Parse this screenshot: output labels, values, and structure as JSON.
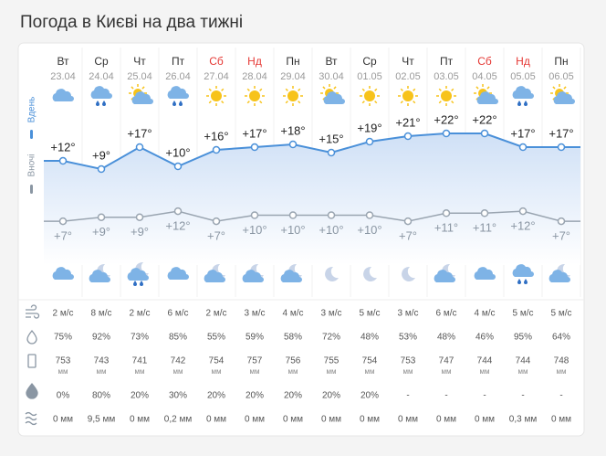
{
  "header": {
    "title": "Погода в Києві на два тижні"
  },
  "side_labels": {
    "day": "Вдень",
    "night": "Вночі"
  },
  "days": [
    {
      "weekday": "Вт",
      "date": "23.04",
      "weekend": false,
      "day_temp": 12,
      "day_label": "+12°",
      "night_temp": 7,
      "night_label": "+7°",
      "wind": "2 м/с",
      "humidity": "75%",
      "pressure": "753",
      "pressure_unit": "мм",
      "precip_prob": "0%",
      "precip": "0 мм"
    },
    {
      "weekday": "Ср",
      "date": "24.04",
      "weekend": false,
      "day_temp": 9,
      "day_label": "+9°",
      "night_temp": 9,
      "night_label": "+9°",
      "wind": "8 м/с",
      "humidity": "92%",
      "pressure": "743",
      "pressure_unit": "мм",
      "precip_prob": "80%",
      "precip": "9,5 мм"
    },
    {
      "weekday": "Чт",
      "date": "25.04",
      "weekend": false,
      "day_temp": 17,
      "day_label": "+17°",
      "night_temp": 9,
      "night_label": "+9°",
      "wind": "2 м/с",
      "humidity": "73%",
      "pressure": "741",
      "pressure_unit": "мм",
      "precip_prob": "20%",
      "precip": "0 мм"
    },
    {
      "weekday": "Пт",
      "date": "26.04",
      "weekend": false,
      "day_temp": 10,
      "day_label": "+10°",
      "night_temp": 12,
      "night_label": "+12°",
      "wind": "6 м/с",
      "humidity": "85%",
      "pressure": "742",
      "pressure_unit": "мм",
      "precip_prob": "30%",
      "precip": "0,2 мм"
    },
    {
      "weekday": "Сб",
      "date": "27.04",
      "weekend": true,
      "day_temp": 16,
      "day_label": "+16°",
      "night_temp": 7,
      "night_label": "+7°",
      "wind": "2 м/с",
      "humidity": "55%",
      "pressure": "754",
      "pressure_unit": "мм",
      "precip_prob": "20%",
      "precip": "0 мм"
    },
    {
      "weekday": "Нд",
      "date": "28.04",
      "weekend": true,
      "day_temp": 17,
      "day_label": "+17°",
      "night_temp": 10,
      "night_label": "+10°",
      "wind": "3 м/с",
      "humidity": "59%",
      "pressure": "757",
      "pressure_unit": "мм",
      "precip_prob": "20%",
      "precip": "0 мм"
    },
    {
      "weekday": "Пн",
      "date": "29.04",
      "weekend": false,
      "day_temp": 18,
      "day_label": "+18°",
      "night_temp": 10,
      "night_label": "+10°",
      "wind": "4 м/с",
      "humidity": "58%",
      "pressure": "756",
      "pressure_unit": "мм",
      "precip_prob": "20%",
      "precip": "0 мм"
    },
    {
      "weekday": "Вт",
      "date": "30.04",
      "weekend": false,
      "day_temp": 15,
      "day_label": "+15°",
      "night_temp": 10,
      "night_label": "+10°",
      "wind": "3 м/с",
      "humidity": "72%",
      "pressure": "755",
      "pressure_unit": "мм",
      "precip_prob": "20%",
      "precip": "0 мм"
    },
    {
      "weekday": "Ср",
      "date": "01.05",
      "weekend": false,
      "day_temp": 19,
      "day_label": "+19°",
      "night_temp": 10,
      "night_label": "+10°",
      "wind": "5 м/с",
      "humidity": "48%",
      "pressure": "754",
      "pressure_unit": "мм",
      "precip_prob": "20%",
      "precip": "0 мм"
    },
    {
      "weekday": "Чт",
      "date": "02.05",
      "weekend": false,
      "day_temp": 21,
      "day_label": "+21°",
      "night_temp": 7,
      "night_label": "+7°",
      "wind": "3 м/с",
      "humidity": "53%",
      "pressure": "753",
      "pressure_unit": "мм",
      "precip_prob": "-",
      "precip": "0 мм"
    },
    {
      "weekday": "Пт",
      "date": "03.05",
      "weekend": false,
      "day_temp": 22,
      "day_label": "+22°",
      "night_temp": 11,
      "night_label": "+11°",
      "wind": "6 м/с",
      "humidity": "48%",
      "pressure": "747",
      "pressure_unit": "мм",
      "precip_prob": "-",
      "precip": "0 мм"
    },
    {
      "weekday": "Сб",
      "date": "04.05",
      "weekend": true,
      "day_temp": 22,
      "day_label": "+22°",
      "night_temp": 11,
      "night_label": "+11°",
      "wind": "4 м/с",
      "humidity": "46%",
      "pressure": "744",
      "pressure_unit": "мм",
      "precip_prob": "-",
      "precip": "0 мм"
    },
    {
      "weekday": "Нд",
      "date": "05.05",
      "weekend": true,
      "day_temp": 17,
      "day_label": "+17°",
      "night_temp": 12,
      "night_label": "+12°",
      "wind": "5 м/с",
      "humidity": "95%",
      "pressure": "744",
      "pressure_unit": "мм",
      "precip_prob": "-",
      "precip": "0,3 мм"
    },
    {
      "weekday": "Пн",
      "date": "06.05",
      "weekend": false,
      "day_temp": 17,
      "day_label": "+17°",
      "night_temp": 7,
      "night_label": "+7°",
      "wind": "5 м/с",
      "humidity": "64%",
      "pressure": "748",
      "pressure_unit": "мм",
      "precip_prob": "-",
      "precip": "0 мм"
    }
  ]
}
